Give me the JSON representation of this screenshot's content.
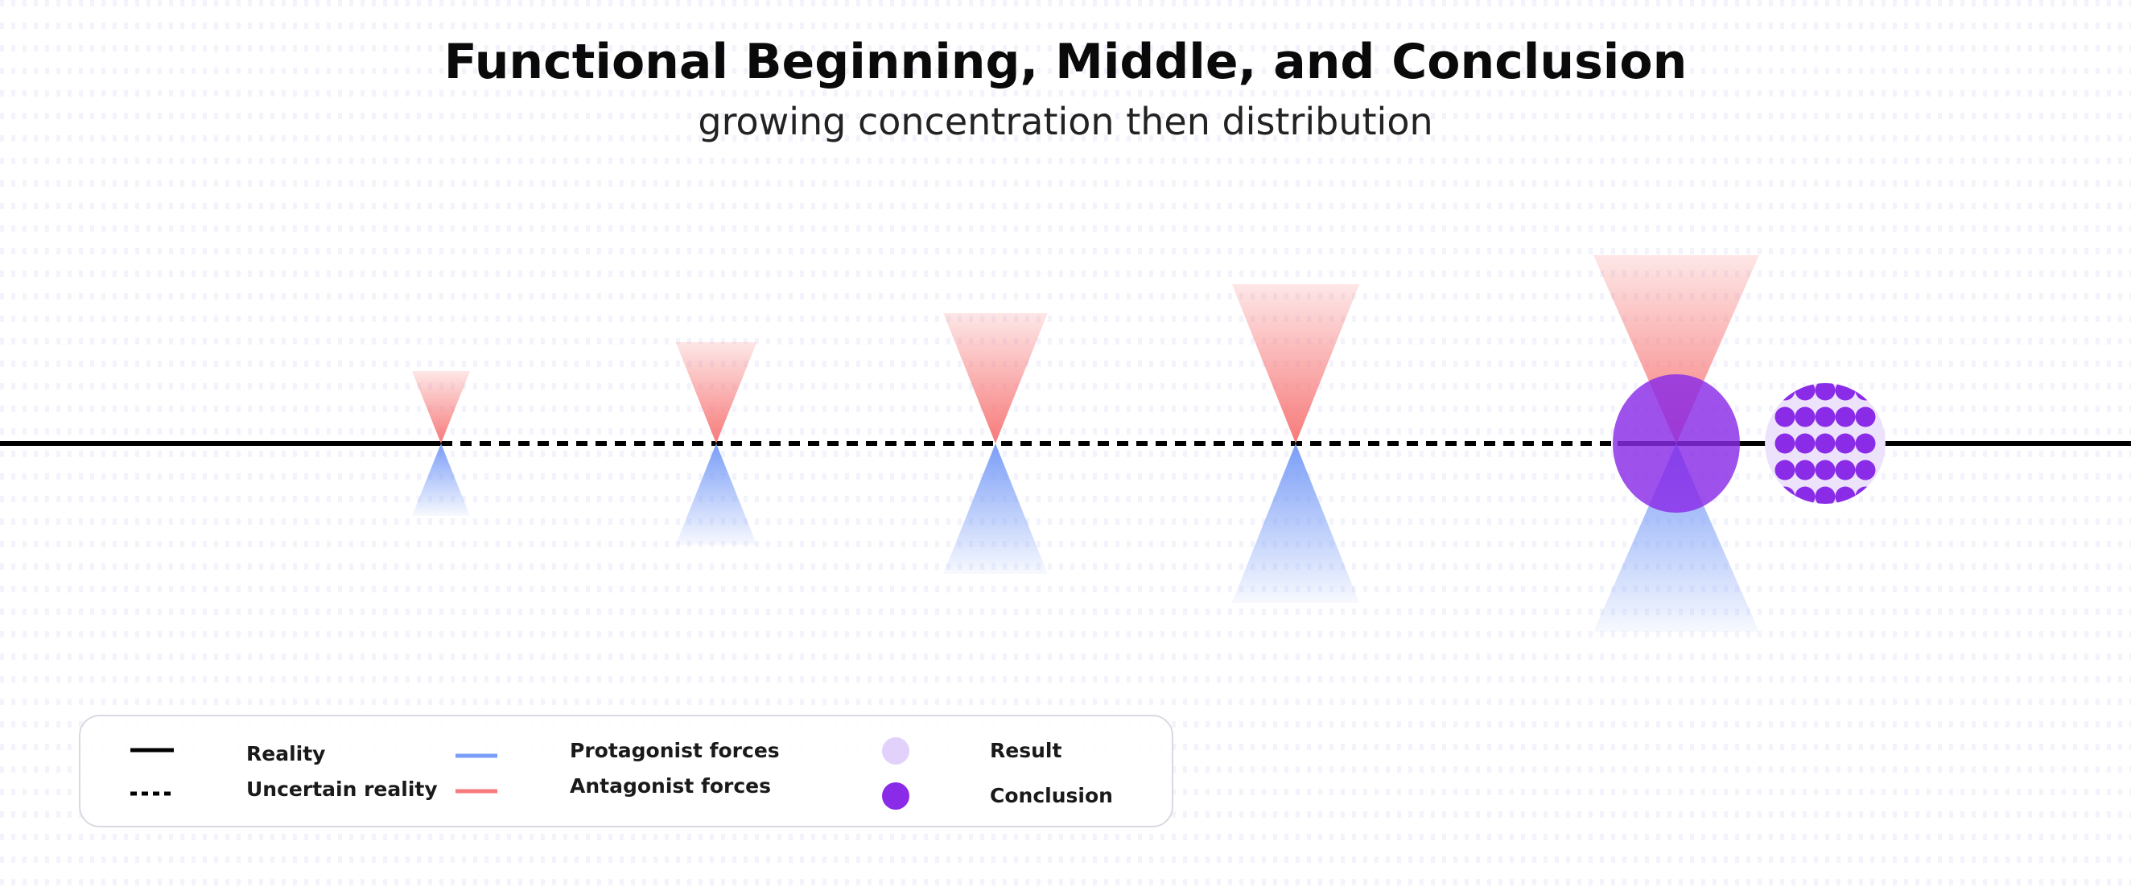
{
  "title": "Functional Beginning, Middle, and Conclusion",
  "subtitle": "growing concentration then distribution",
  "colors": {
    "reality": "#000000",
    "protagonist": "#7a9df7",
    "antagonist": "#f77a7a",
    "result": "#e2d2fb",
    "conclusion": "#8a2be8"
  },
  "legend": {
    "reality": "Reality",
    "uncertain_reality": "Uncertain reality",
    "protagonist_forces": "Protagonist forces",
    "antagonist_forces": "Antagonist forces",
    "result": "Result",
    "conclusion": "Conclusion"
  },
  "stages": [
    {
      "antagonist": 1.0,
      "protagonist": 1.0
    },
    {
      "antagonist": 1.4,
      "protagonist": 1.4
    },
    {
      "antagonist": 1.8,
      "protagonist": 1.8
    },
    {
      "antagonist": 2.2,
      "protagonist": 2.2
    },
    {
      "antagonist": 2.6,
      "protagonist": 2.6,
      "conclusion": true
    }
  ],
  "distribution_icon": "dotted-result-circle"
}
